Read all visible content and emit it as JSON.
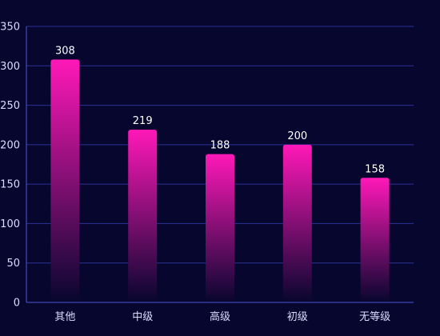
{
  "colors": {
    "background": "#07062e",
    "grid": "#2b3296",
    "axis": "#4a55d4",
    "bar_top": "#ff18b8",
    "bar_bottom": "#07062e",
    "text": "#d8ddff",
    "value_text": "#ffffff"
  },
  "chart_data": {
    "type": "bar",
    "title": "",
    "xlabel": "",
    "ylabel": "",
    "categories": [
      "其他",
      "中级",
      "高级",
      "初级",
      "无等级"
    ],
    "values": [
      308,
      219,
      188,
      200,
      158
    ],
    "data_labels": [
      "308",
      "219",
      "188",
      "200",
      "158"
    ],
    "ylim": [
      0,
      350
    ],
    "yticks": [
      0,
      50,
      100,
      150,
      200,
      250,
      300,
      350
    ],
    "ytick_labels": [
      "0",
      "50",
      "100",
      "150",
      "200",
      "250",
      "300",
      "350"
    ],
    "grid": true,
    "legend": "none"
  }
}
